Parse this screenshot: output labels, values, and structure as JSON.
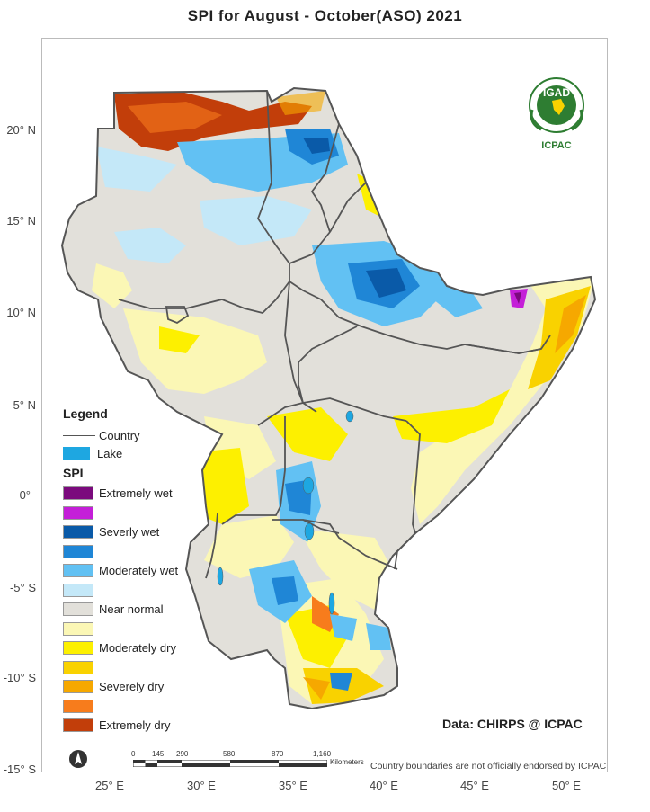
{
  "title": "SPI   for   August - October(ASO)  2021",
  "latitude_labels": [
    "20° N",
    "15° N",
    "10° N",
    "5° N",
    "0°",
    "-5° S",
    "-10° S",
    "-15° S"
  ],
  "longitude_labels": [
    "25° E",
    "30° E",
    "35° E",
    "40° E",
    "45° E",
    "50° E"
  ],
  "legend": {
    "title": "Legend",
    "country_label": "Country",
    "lake_label": "Lake",
    "lake_color": "#1ea7e1",
    "spi_title": "SPI",
    "spi_classes": [
      {
        "label": "Extremely wet",
        "color": "#7b0a7d"
      },
      {
        "label": "",
        "color": "#c41fd8"
      },
      {
        "label": "Severly wet",
        "color": "#0a5aa8"
      },
      {
        "label": "",
        "color": "#1f86d6"
      },
      {
        "label": "Moderately wet",
        "color": "#62c1f3"
      },
      {
        "label": "",
        "color": "#c4e8f8"
      },
      {
        "label": "Near normal",
        "color": "#e2e0da"
      },
      {
        "label": "",
        "color": "#fbf7b5"
      },
      {
        "label": "Moderately dry",
        "color": "#fdf000"
      },
      {
        "label": "",
        "color": "#f9d200"
      },
      {
        "label": "Severely dry",
        "color": "#f6a800"
      },
      {
        "label": "",
        "color": "#f77c1c"
      },
      {
        "label": "Extremely dry",
        "color": "#c23e0a"
      }
    ]
  },
  "logo": {
    "top_text": "IGAD",
    "bottom_text": "ICPAC"
  },
  "credit": "Data: CHIRPS @ ICPAC",
  "scale_bar": {
    "ticks": [
      "0",
      "145",
      "290",
      "580",
      "870",
      "1,160"
    ],
    "units": "Kilometers"
  },
  "disclaimer": "Country boundaries are not officially endorsed by ICPAC",
  "border_color": "#555555"
}
